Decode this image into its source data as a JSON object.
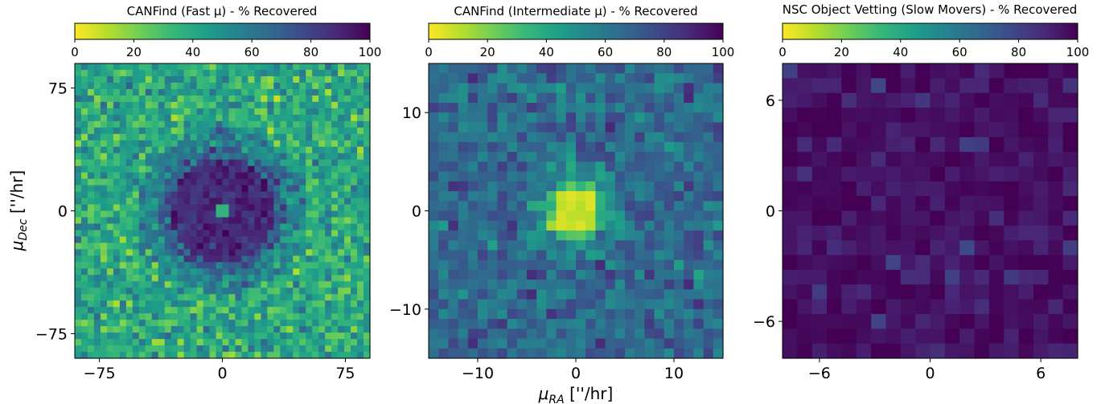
{
  "figure": {
    "shared_xlabel": "μRA [''/hr]",
    "shared_ylabel": "μDec [''/hr]"
  },
  "colormap": {
    "name": "viridis_r",
    "stops": [
      "#fde725",
      "#b5de2b",
      "#6ece58",
      "#35b779",
      "#1f9e89",
      "#26828e",
      "#31688e",
      "#3e4989",
      "#482878",
      "#440154"
    ]
  },
  "chart_data": [
    {
      "type": "heatmap",
      "title": "CANFind (Fast μ) - % Recovered",
      "colorbar": {
        "range": [
          0,
          100
        ],
        "ticks": [
          0,
          20,
          40,
          60,
          80,
          100
        ],
        "placement": "top"
      },
      "xlim": [
        -90,
        90
      ],
      "ylim": [
        -90,
        90
      ],
      "xticks": [
        -75,
        0,
        75
      ],
      "yticks": [
        -75,
        0,
        75
      ],
      "grid_bins": [
        46,
        46
      ],
      "value_pattern": "~40% recovered in outer region, ~88% in ring of radius 0-32, sparse single low cells near center",
      "grid": false
    },
    {
      "type": "heatmap",
      "title": "CANFind (Intermediate μ) - % Recovered",
      "colorbar": {
        "range": [
          0,
          100
        ],
        "ticks": [
          0,
          20,
          40,
          60,
          80,
          100
        ],
        "placement": "top"
      },
      "xlim": [
        -15,
        15
      ],
      "ylim": [
        -15,
        15
      ],
      "xticks": [
        -10,
        0,
        10
      ],
      "yticks": [
        -10,
        0,
        10
      ],
      "grid_bins": [
        30,
        30
      ],
      "value_pattern": "~65% recovered overall, dropping to ~5% in central disc of radius ~2",
      "grid": false
    },
    {
      "type": "heatmap",
      "title": "NSC Object Vetting (Slow Movers) - % Recovered",
      "colorbar": {
        "range": [
          0,
          100
        ],
        "ticks": [
          0,
          20,
          40,
          60,
          80,
          100
        ],
        "placement": "top"
      },
      "xlim": [
        -8,
        8
      ],
      "ylim": [
        -8,
        8
      ],
      "xticks": [
        -6,
        0,
        6
      ],
      "yticks": [
        -6,
        0,
        6
      ],
      "grid_bins": [
        20,
        20
      ],
      "value_pattern": "~95-100% recovered everywhere",
      "grid": false
    }
  ]
}
